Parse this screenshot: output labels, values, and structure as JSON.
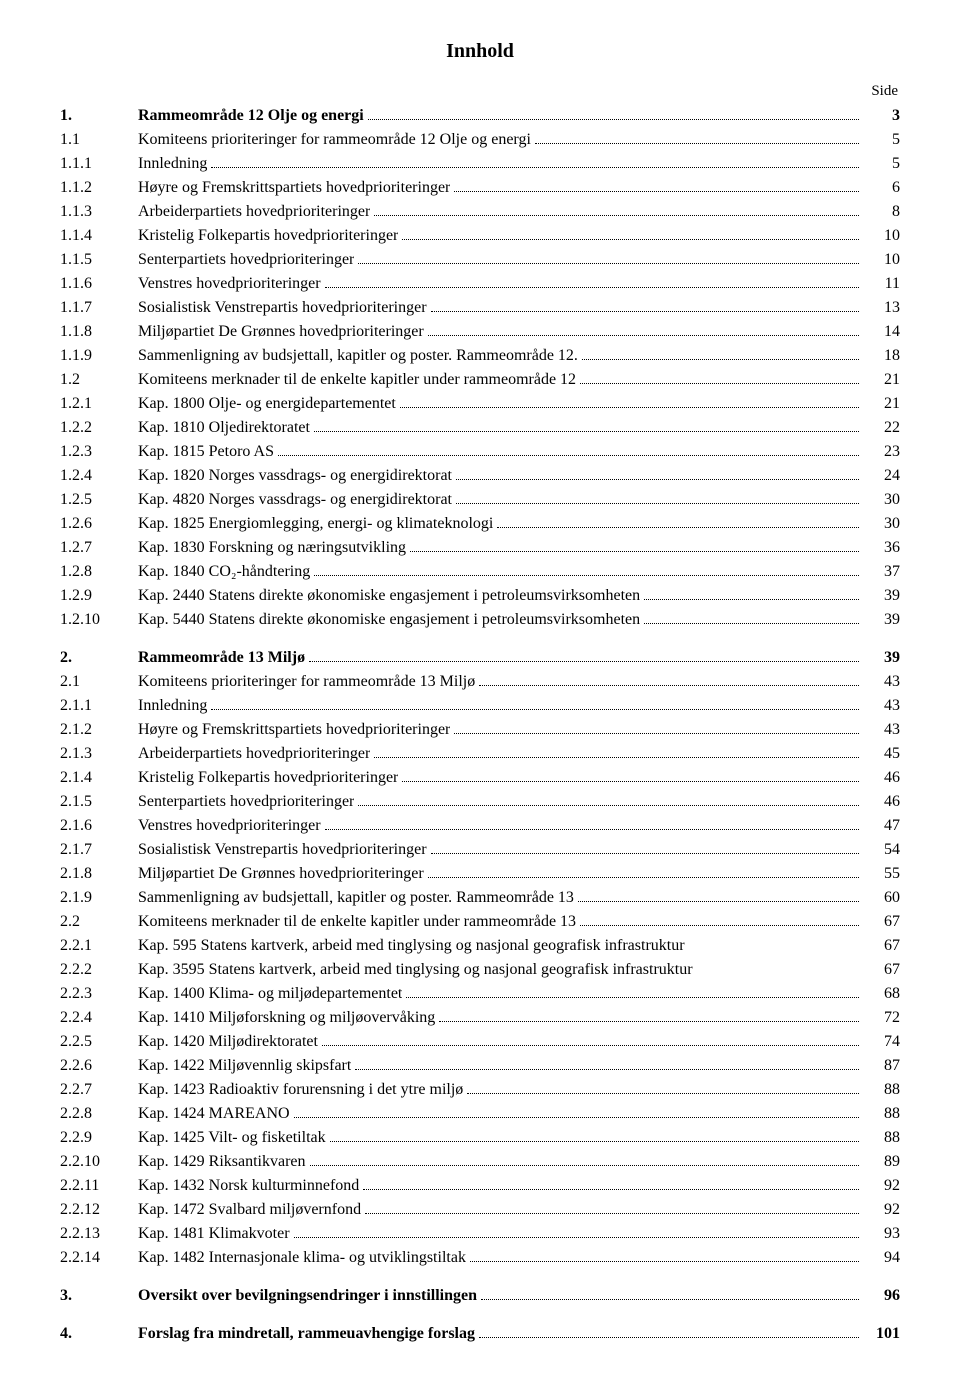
{
  "title": "Innhold",
  "side_label": "Side",
  "entries": [
    {
      "num": "1.",
      "text": "Rammeområde 12 Olje og energi",
      "page": "3",
      "bold": true,
      "dots": true
    },
    {
      "num": "1.1",
      "text": "Komiteens prioriteringer for rammeområde 12 Olje og energi",
      "page": "5",
      "dots": true
    },
    {
      "num": "1.1.1",
      "text": "Innledning",
      "page": "5",
      "dots": true
    },
    {
      "num": "1.1.2",
      "text": "Høyre og Fremskrittspartiets hovedprioriteringer",
      "page": "6",
      "dots": true
    },
    {
      "num": "1.1.3",
      "text": "Arbeiderpartiets hovedprioriteringer",
      "page": "8",
      "dots": true
    },
    {
      "num": "1.1.4",
      "text": "Kristelig Folkepartis hovedprioriteringer",
      "page": "10",
      "dots": true
    },
    {
      "num": "1.1.5",
      "text": "Senterpartiets hovedprioriteringer",
      "page": "10",
      "dots": true
    },
    {
      "num": "1.1.6",
      "text": "Venstres hovedprioriteringer",
      "page": "11",
      "dots": true
    },
    {
      "num": "1.1.7",
      "text": "Sosialistisk Venstrepartis hovedprioriteringer",
      "page": "13",
      "dots": true
    },
    {
      "num": "1.1.8",
      "text": "Miljøpartiet De Grønnes hovedprioriteringer",
      "page": "14",
      "dots": true
    },
    {
      "num": "1.1.9",
      "text": "Sammenligning av budsjettall, kapitler og poster. Rammeområde 12.",
      "page": "18",
      "dots": true
    },
    {
      "num": "1.2",
      "text": "Komiteens merknader til de enkelte kapitler under rammeområde 12",
      "page": "21",
      "dots": true
    },
    {
      "num": "1.2.1",
      "text": "Kap. 1800 Olje- og energidepartementet",
      "page": "21",
      "dots": true
    },
    {
      "num": "1.2.2",
      "text": "Kap. 1810 Oljedirektoratet",
      "page": "22",
      "dots": true
    },
    {
      "num": "1.2.3",
      "text": "Kap. 1815 Petoro AS",
      "page": "23",
      "dots": true
    },
    {
      "num": "1.2.4",
      "text": "Kap. 1820 Norges vassdrags- og energidirektorat",
      "page": "24",
      "dots": true
    },
    {
      "num": "1.2.5",
      "text": "Kap. 4820 Norges vassdrags- og energidirektorat",
      "page": "30",
      "dots": true
    },
    {
      "num": "1.2.6",
      "text": "Kap. 1825 Energiomlegging, energi- og klimateknologi",
      "page": "30",
      "dots": true
    },
    {
      "num": "1.2.7",
      "text": "Kap. 1830 Forskning og næringsutvikling",
      "page": "36",
      "dots": true
    },
    {
      "num": "1.2.8",
      "text": "Kap. 1840 CO₂-håndtering",
      "page": "37",
      "dots": true
    },
    {
      "num": "1.2.9",
      "text": "Kap. 2440 Statens direkte økonomiske engasjement i petroleumsvirksomheten",
      "page": "39",
      "dots": true
    },
    {
      "num": "1.2.10",
      "text": "Kap. 5440 Statens direkte økonomiske engasjement i petroleumsvirksomheten",
      "page": "39",
      "dots": true
    },
    {
      "num": "2.",
      "text": "Rammeområde 13 Miljø",
      "page": "39",
      "bold": true,
      "dots": true,
      "section": true
    },
    {
      "num": "2.1",
      "text": "Komiteens prioriteringer for rammeområde 13 Miljø",
      "page": "43",
      "dots": true
    },
    {
      "num": "2.1.1",
      "text": "Innledning",
      "page": "43",
      "dots": true
    },
    {
      "num": "2.1.2",
      "text": "Høyre og Fremskrittspartiets hovedprioriteringer",
      "page": "43",
      "dots": true
    },
    {
      "num": "2.1.3",
      "text": "Arbeiderpartiets hovedprioriteringer",
      "page": "45",
      "dots": true
    },
    {
      "num": "2.1.4",
      "text": "Kristelig Folkepartis hovedprioriteringer",
      "page": "46",
      "dots": true
    },
    {
      "num": "2.1.5",
      "text": "Senterpartiets hovedprioriteringer",
      "page": "46",
      "dots": true
    },
    {
      "num": "2.1.6",
      "text": "Venstres hovedprioriteringer",
      "page": "47",
      "dots": true
    },
    {
      "num": "2.1.7",
      "text": "Sosialistisk Venstrepartis hovedprioriteringer",
      "page": "54",
      "dots": true
    },
    {
      "num": "2.1.8",
      "text": "Miljøpartiet De Grønnes hovedprioriteringer",
      "page": "55",
      "dots": true
    },
    {
      "num": "2.1.9",
      "text": "Sammenligning av budsjettall, kapitler og poster. Rammeområde 13",
      "page": "60",
      "dots": true
    },
    {
      "num": "2.2",
      "text": "Komiteens merknader til de enkelte kapitler under rammeområde 13",
      "page": "67",
      "dots": true
    },
    {
      "num": "2.2.1",
      "text": "Kap. 595 Statens kartverk, arbeid med tinglysing og nasjonal geografisk infrastruktur",
      "page": "67",
      "dots": false
    },
    {
      "num": "2.2.2",
      "text": "Kap. 3595 Statens kartverk, arbeid med tinglysing og nasjonal geografisk infrastruktur",
      "page": "67",
      "dots": false
    },
    {
      "num": "2.2.3",
      "text": "Kap. 1400 Klima- og miljødepartementet",
      "page": "68",
      "dots": true
    },
    {
      "num": "2.2.4",
      "text": "Kap. 1410 Miljøforskning og miljøovervåking",
      "page": "72",
      "dots": true
    },
    {
      "num": "2.2.5",
      "text": "Kap. 1420 Miljødirektoratet",
      "page": "74",
      "dots": true
    },
    {
      "num": "2.2.6",
      "text": "Kap. 1422 Miljøvennlig skipsfart",
      "page": "87",
      "dots": true
    },
    {
      "num": "2.2.7",
      "text": "Kap. 1423 Radioaktiv forurensning i det ytre miljø",
      "page": "88",
      "dots": true
    },
    {
      "num": "2.2.8",
      "text": "Kap. 1424 MAREANO",
      "page": "88",
      "dots": true
    },
    {
      "num": "2.2.9",
      "text": "Kap. 1425 Vilt- og fisketiltak",
      "page": "88",
      "dots": true
    },
    {
      "num": "2.2.10",
      "text": "Kap. 1429 Riksantikvaren",
      "page": "89",
      "dots": true
    },
    {
      "num": "2.2.11",
      "text": "Kap. 1432 Norsk kulturminnefond",
      "page": "92",
      "dots": true
    },
    {
      "num": "2.2.12",
      "text": "Kap. 1472 Svalbard miljøvernfond",
      "page": "92",
      "dots": true
    },
    {
      "num": "2.2.13",
      "text": "Kap. 1481 Klimakvoter",
      "page": "93",
      "dots": true
    },
    {
      "num": "2.2.14",
      "text": "Kap. 1482 Internasjonale klima- og utviklingstiltak",
      "page": "94",
      "dots": true
    },
    {
      "num": "3.",
      "text": "Oversikt over bevilgningsendringer i innstillingen",
      "page": "96",
      "bold": true,
      "dots": true,
      "section": true
    },
    {
      "num": "4.",
      "text": "Forslag fra mindretall, rammeuavhengige forslag",
      "page": "101",
      "bold": true,
      "dots": true,
      "section": true
    }
  ]
}
